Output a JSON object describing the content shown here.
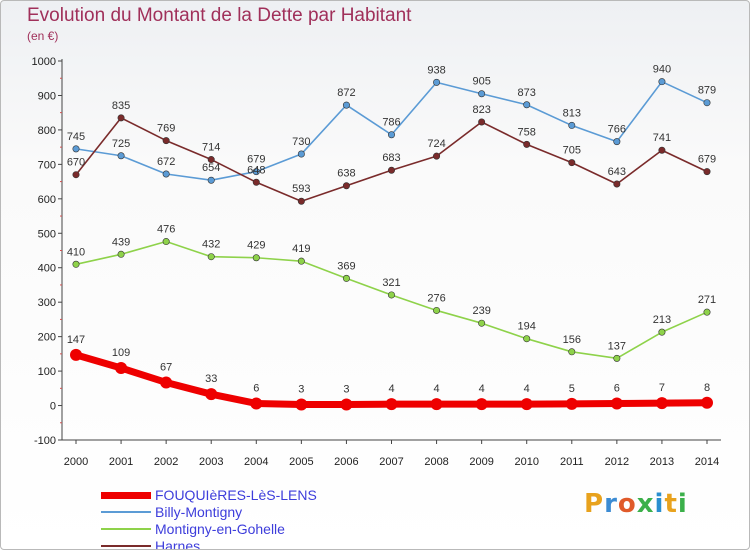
{
  "header": {
    "title": "Evolution du Montant de la Dette par Habitant",
    "subtitle": "(en €)"
  },
  "brand": {
    "name": "Proxiti",
    "letter_colors": [
      "#e8a21d",
      "#3b8bd3",
      "#e05a2a",
      "#3bb04a",
      "#2a8fcf",
      "#e8a21d",
      "#3bb04a"
    ]
  },
  "chart_data": {
    "type": "line",
    "title": "Evolution du Montant de la Dette par Habitant",
    "subtitle": "(en €)",
    "xlabel": "",
    "ylabel": "",
    "x": [
      "2000",
      "2001",
      "2002",
      "2003",
      "2004",
      "2005",
      "2006",
      "2007",
      "2008",
      "2009",
      "2010",
      "2011",
      "2012",
      "2013",
      "2014"
    ],
    "ylim": [
      -100,
      1000
    ],
    "yticks": [
      "-100",
      "0",
      "100",
      "200",
      "300",
      "400",
      "500",
      "600",
      "700",
      "800",
      "900",
      "1000"
    ],
    "grid": false,
    "legend_position": "bottom-left",
    "series": [
      {
        "name": "FOUQUIèRES-LèS-LENS",
        "color": "#ee0000",
        "emphasis": true,
        "values": [
          147,
          109,
          67,
          33,
          6,
          3,
          3,
          4,
          4,
          4,
          4,
          5,
          6,
          7,
          8
        ],
        "labels": [
          "147",
          "109",
          "67",
          "33",
          "6",
          "3",
          "3",
          "4",
          "4",
          "4",
          "4",
          "5",
          "6",
          "7",
          "8"
        ]
      },
      {
        "name": "Billy-Montigny",
        "color": "#5b9bd5",
        "emphasis": false,
        "values": [
          745,
          725,
          672,
          654,
          679,
          730,
          872,
          786,
          938,
          905,
          873,
          813,
          766,
          940,
          879
        ],
        "labels": [
          "745",
          "725",
          "672",
          "654",
          "679",
          "730",
          "872",
          "786",
          "938",
          "905",
          "873",
          "813",
          "766",
          "940",
          "879"
        ]
      },
      {
        "name": "Montigny-en-Gohelle",
        "color": "#8ed24a",
        "emphasis": false,
        "values": [
          410,
          439,
          476,
          432,
          429,
          419,
          369,
          321,
          276,
          239,
          194,
          156,
          137,
          213,
          271
        ],
        "labels": [
          "410",
          "439",
          "476",
          "432",
          "429",
          "419",
          "369",
          "321",
          "276",
          "239",
          "194",
          "156",
          "137",
          "213",
          "271"
        ]
      },
      {
        "name": "Harnes",
        "color": "#7a2b2b",
        "emphasis": false,
        "values": [
          670,
          835,
          769,
          714,
          648,
          593,
          638,
          683,
          724,
          823,
          758,
          705,
          643,
          741,
          679
        ],
        "labels": [
          "670",
          "835",
          "769",
          "714",
          "648",
          "593",
          "638",
          "683",
          "724",
          "823",
          "758",
          "705",
          "643",
          "741",
          "679"
        ]
      }
    ]
  }
}
